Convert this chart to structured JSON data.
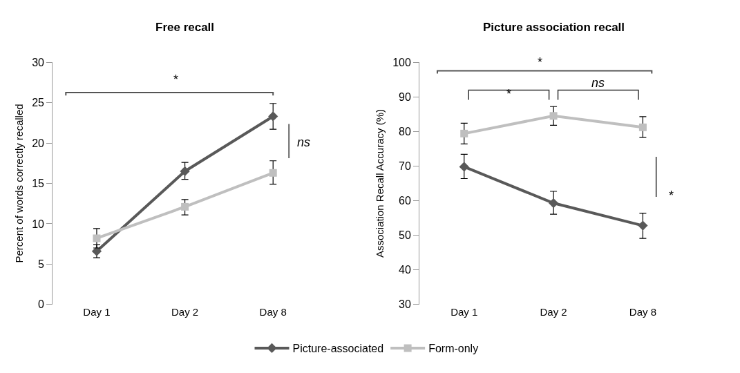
{
  "chart_data": [
    {
      "type": "line",
      "title": "Free recall",
      "ylabel": "Percent of words correctly recalled",
      "categories": [
        "Day 1",
        "Day 2",
        "Day 8"
      ],
      "ylim": [
        0,
        30
      ],
      "yticks": [
        0,
        5,
        10,
        15,
        20,
        25,
        30
      ],
      "legend": "bottom",
      "series": [
        {
          "name": "Picture-associated",
          "color": "#595959",
          "marker": "diamond",
          "values": [
            6.6,
            16.5,
            23.3
          ],
          "errors": [
            [
              5.8,
              7.4
            ],
            [
              15.5,
              17.6
            ],
            [
              21.7,
              24.9
            ]
          ]
        },
        {
          "name": "Form-only",
          "color": "#bfbfbf",
          "marker": "square",
          "values": [
            8.2,
            12.1,
            16.3
          ],
          "errors": [
            [
              7.0,
              9.4
            ],
            [
              11.1,
              13.0
            ],
            [
              14.9,
              17.8
            ]
          ]
        }
      ],
      "annotations": [
        "*",
        "ns"
      ]
    },
    {
      "type": "line",
      "title": "Picture association recall",
      "ylabel": "Association Recall Accuracy (%)",
      "categories": [
        "Day 1",
        "Day 2",
        "Day 8"
      ],
      "ylim": [
        30,
        100
      ],
      "yticks": [
        30,
        40,
        50,
        60,
        70,
        80,
        90,
        100
      ],
      "series": [
        {
          "color": "#595959",
          "marker": "diamond",
          "values": [
            69.8,
            59.3,
            52.8
          ],
          "errors": [
            [
              66.4,
              73.4
            ],
            [
              56.1,
              62.7
            ],
            [
              49.1,
              56.4
            ]
          ]
        },
        {
          "color": "#bfbfbf",
          "marker": "square",
          "values": [
            79.4,
            84.5,
            81.2
          ],
          "errors": [
            [
              76.4,
              82.4
            ],
            [
              81.8,
              87.2
            ],
            [
              78.3,
              84.3
            ]
          ]
        }
      ],
      "annotations": [
        "*",
        "*",
        "ns",
        "*"
      ]
    }
  ]
}
